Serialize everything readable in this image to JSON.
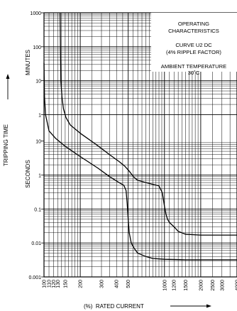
{
  "chart_data": {
    "type": "line",
    "title": "",
    "annotation_lines": [
      "OPERATING",
      "CHARACTERISTICS",
      "CURVE U2 DC",
      "(4% RIPPLE FACTOR)",
      "AMBIENT TEMPERATURE",
      "30˚C"
    ],
    "xlabel": "(%)  RATED CURRENT",
    "ylabel": "TRIPPING TIME",
    "y_unit_upper": "MINUTES",
    "y_unit_lower": "SECONDS",
    "x_scale": "log",
    "y_scale": "log",
    "xlim": [
      100,
      4000
    ],
    "ylim_seconds": [
      0.001,
      60000
    ],
    "grid": true,
    "legend": "none",
    "x_ticks": [
      100,
      110,
      120,
      130,
      150,
      200,
      300,
      400,
      500,
      1000,
      1200,
      1500,
      2000,
      2500,
      3000,
      4000
    ],
    "x_tick_labels": [
      "100",
      "110",
      "120",
      "130",
      "150",
      "200",
      "300",
      "400",
      "500",
      "1000",
      "1200",
      "1500",
      "2000",
      "2500",
      "3000",
      "4000"
    ],
    "y_ticks_minutes": [
      {
        "label": "1000",
        "seconds": 60000
      },
      {
        "label": "100",
        "seconds": 6000
      },
      {
        "label": "10",
        "seconds": 600
      },
      {
        "label": "1",
        "seconds": 60
      }
    ],
    "y_ticks_seconds": [
      {
        "label": "10",
        "seconds": 10
      },
      {
        "label": "1",
        "seconds": 1
      },
      {
        "label": "0.1",
        "seconds": 0.1
      },
      {
        "label": "0.01",
        "seconds": 0.01
      },
      {
        "label": "0.001",
        "seconds": 0.001
      }
    ],
    "series": [
      {
        "x": [
          136,
          137,
          138,
          141,
          145,
          152,
          165,
          200,
          270,
          350,
          420,
          470,
          510,
          540,
          560,
          600,
          700,
          900,
          960,
          1000,
          1030,
          1060,
          1100,
          1200,
          1300,
          1500,
          2000,
          2500,
          3000,
          4000
        ],
        "y": [
          60000,
          5000,
          600,
          200,
          90,
          50,
          30,
          17,
          8,
          4,
          2.5,
          1.8,
          1.3,
          1,
          0.85,
          0.7,
          0.6,
          0.48,
          0.3,
          0.12,
          0.07,
          0.05,
          0.04,
          0.03,
          0.022,
          0.018,
          0.017,
          0.017,
          0.017,
          0.017
        ]
      },
      {
        "x": [
          100,
          101,
          103,
          110,
          125,
          150,
          200,
          280,
          350,
          420,
          460,
          480,
          490,
          500,
          510,
          530,
          560,
          600,
          700,
          800,
          1000,
          1500,
          2000,
          4000
        ],
        "y": [
          2000,
          200,
          60,
          20,
          12,
          7,
          3.5,
          1.6,
          0.9,
          0.6,
          0.5,
          0.35,
          0.15,
          0.05,
          0.02,
          0.01,
          0.007,
          0.005,
          0.004,
          0.0035,
          0.0033,
          0.0032,
          0.0032,
          0.0032
        ]
      }
    ]
  }
}
